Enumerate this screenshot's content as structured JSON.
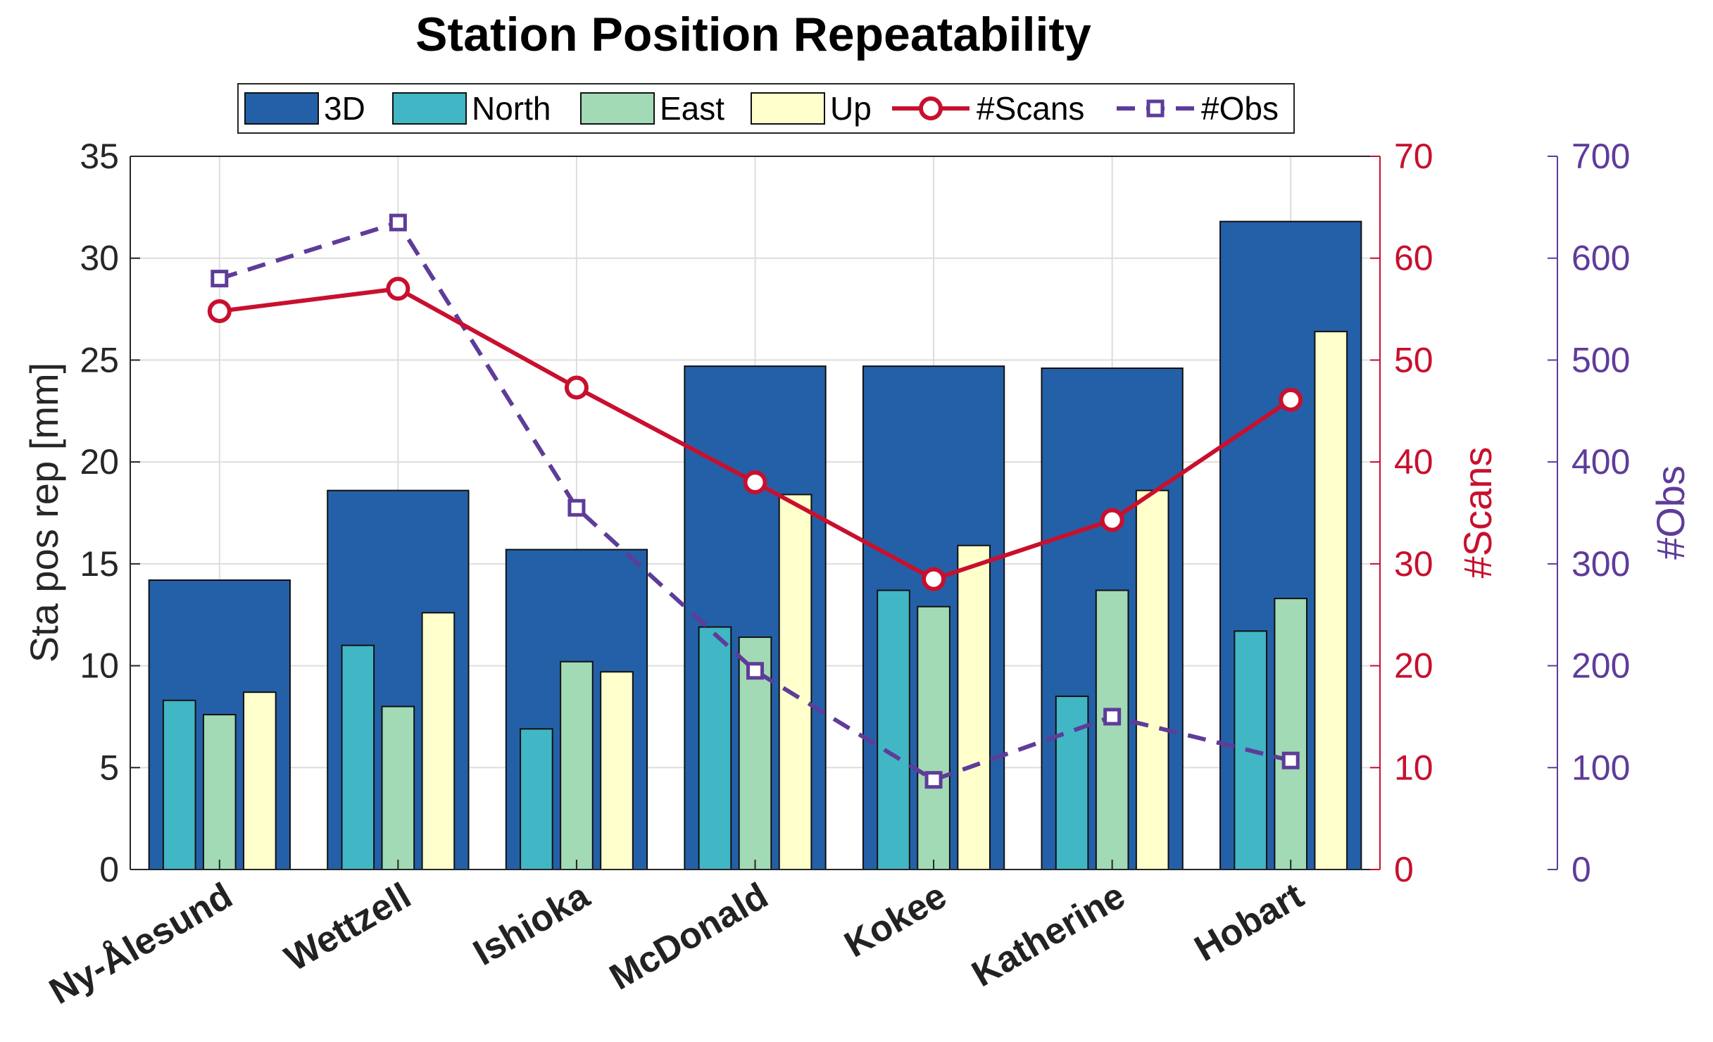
{
  "chart_data": {
    "type": "bar",
    "title": "Station Position Repeatability",
    "categories": [
      "Ny-Ålesund",
      "Wettzell",
      "Ishioka",
      "McDonald",
      "Kokee",
      "Katherine",
      "Hobart"
    ],
    "series": [
      {
        "name": "3D",
        "axis": "left",
        "kind": "bar",
        "values": [
          14.2,
          18.6,
          15.7,
          24.7,
          24.7,
          24.6,
          31.8
        ]
      },
      {
        "name": "North",
        "axis": "left",
        "kind": "bar",
        "values": [
          8.3,
          11.0,
          6.9,
          11.9,
          13.7,
          8.5,
          11.7
        ]
      },
      {
        "name": "East",
        "axis": "left",
        "kind": "bar",
        "values": [
          7.6,
          8.0,
          10.2,
          11.4,
          12.9,
          13.7,
          13.3
        ]
      },
      {
        "name": "Up",
        "axis": "left",
        "kind": "bar",
        "values": [
          8.7,
          12.6,
          9.7,
          18.4,
          15.9,
          18.6,
          26.4
        ]
      },
      {
        "name": "#Scans",
        "axis": "right1",
        "kind": "line",
        "values": [
          54.8,
          57.0,
          47.3,
          38.0,
          28.5,
          34.3,
          46.1
        ]
      },
      {
        "name": "#Obs",
        "axis": "right2",
        "kind": "line",
        "values": [
          580,
          635,
          355,
          195,
          88,
          150,
          107
        ]
      }
    ],
    "ylabel": "Sta pos rep [mm]",
    "ylim": [
      0,
      35
    ],
    "yticks": [
      0,
      5,
      10,
      15,
      20,
      25,
      30,
      35
    ],
    "y2label": "#Scans",
    "y2lim": [
      0,
      70
    ],
    "y2ticks": [
      0,
      10,
      20,
      30,
      40,
      50,
      60,
      70
    ],
    "y3label": "#Obs",
    "y3lim": [
      0,
      700
    ],
    "y3ticks": [
      0,
      100,
      200,
      300,
      400,
      500,
      600,
      700
    ],
    "grid": true,
    "legend_placement": "top-center",
    "legend": [
      "3D",
      "North",
      "East",
      "Up",
      "#Scans",
      "#Obs"
    ]
  },
  "colors": {
    "3D": "#2460a7",
    "North": "#41b6c4",
    "East": "#a1dab4",
    "Up": "#ffffcc",
    "scans": "#c8102e",
    "obs": "#5e3c99",
    "grid": "#dddddd",
    "axis": "#262626"
  }
}
